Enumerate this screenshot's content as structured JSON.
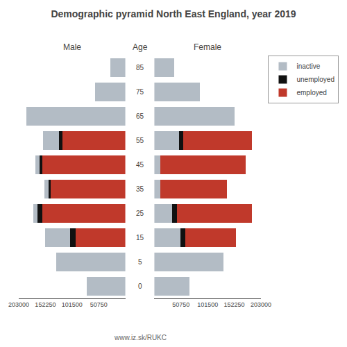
{
  "chart_data": {
    "type": "bar",
    "title": "Demographic pyramid North East England, year 2019",
    "ylabel": "Age",
    "annotations": [
      "www.iz.sk/RUKC"
    ],
    "orientation": "horizontal",
    "stacked": true,
    "grid": false,
    "legend": "upper right",
    "categories": [
      "85",
      "75",
      "65",
      "55",
      "45",
      "35",
      "25",
      "15",
      "5",
      "0"
    ],
    "panels": [
      {
        "title": "Male",
        "xlim": [
          203000,
          0
        ],
        "xticks": [
          50750,
          101500,
          152250,
          203000
        ],
        "series": [
          {
            "name": "employed",
            "color": "#c0392b",
            "values": [
              0,
              0,
              0,
              120000,
              158000,
              142000,
              158000,
              95000,
              0,
              0
            ]
          },
          {
            "name": "unemployed",
            "color": "#111111",
            "values": [
              0,
              0,
              0,
              6500,
              5500,
              4500,
              9000,
              10000,
              0,
              0
            ]
          },
          {
            "name": "inactive",
            "color": "#b3bcc5",
            "values": [
              28000,
              57000,
              188000,
              30000,
              8000,
              8000,
              8000,
              48000,
              132000,
              73000
            ]
          }
        ]
      },
      {
        "title": "Female",
        "xlim": [
          0,
          203000
        ],
        "xticks": [
          50750,
          101500,
          152250,
          203000
        ],
        "series": [
          {
            "name": "inactive",
            "color": "#b3bcc5",
            "values": [
              38000,
              87000,
              153000,
              48000,
              12000,
              12000,
              35000,
              50000,
              132000,
              68000
            ]
          },
          {
            "name": "unemployed",
            "color": "#111111",
            "values": [
              0,
              0,
              0,
              8000,
              0,
              0,
              9000,
              9000,
              0,
              0
            ]
          },
          {
            "name": "employed",
            "color": "#c0392b",
            "values": [
              0,
              0,
              0,
              130000,
              162000,
              127000,
              143000,
              97000,
              0,
              0
            ]
          }
        ]
      }
    ]
  }
}
